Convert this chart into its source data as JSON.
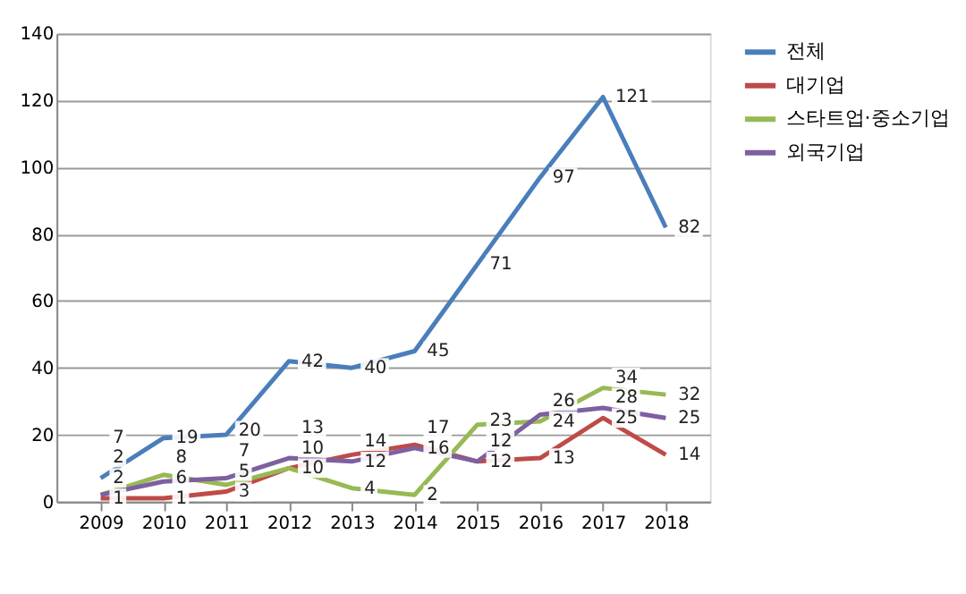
{
  "chart_data": {
    "type": "line",
    "categories": [
      "2009",
      "2010",
      "2011",
      "2012",
      "2013",
      "2014",
      "2015",
      "2016",
      "2017",
      "2018"
    ],
    "series": [
      {
        "name": "전체",
        "color": "#4a7ebb",
        "values": [
          7,
          19,
          20,
          42,
          40,
          45,
          71,
          97,
          121,
          82
        ]
      },
      {
        "name": "대기업",
        "color": "#be4b48",
        "values": [
          1,
          1,
          3,
          10,
          14,
          17,
          12,
          13,
          25,
          14
        ]
      },
      {
        "name": "스타트업·중소기업",
        "color": "#98b954",
        "values": [
          2,
          8,
          5,
          10,
          4,
          2,
          23,
          24,
          34,
          32
        ]
      },
      {
        "name": "외국기업",
        "color": "#7d60a0",
        "values": [
          2,
          6,
          7,
          13,
          12,
          16,
          12,
          26,
          28,
          25
        ]
      }
    ],
    "ylim": [
      0,
      140
    ],
    "yticks": [
      0,
      20,
      40,
      60,
      80,
      100,
      120,
      140
    ],
    "grid": "y",
    "legend": "right",
    "data_labels": true,
    "marker": "none",
    "line_style": "solid"
  }
}
